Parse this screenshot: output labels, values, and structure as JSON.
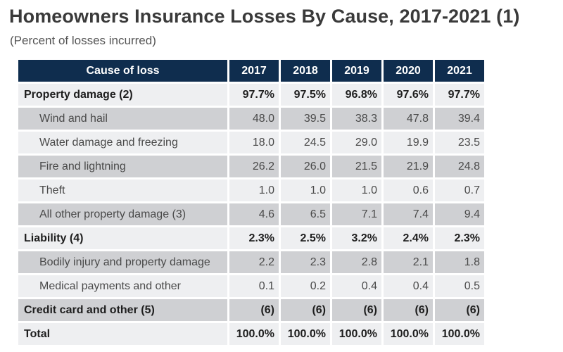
{
  "title": "Homeowners Insurance Losses By Cause, 2017-2021 (1)",
  "subtitle": "(Percent of losses incurred)",
  "table": {
    "header": {
      "cause": "Cause of loss",
      "years": [
        "2017",
        "2018",
        "2019",
        "2020",
        "2021"
      ]
    },
    "rows": [
      {
        "label": "Property damage (2)",
        "values": [
          "97.7%",
          "97.5%",
          "96.8%",
          "97.6%",
          "97.7%"
        ],
        "type": "bold"
      },
      {
        "label": "Wind and hail",
        "values": [
          "48.0",
          "39.5",
          "38.3",
          "47.8",
          "39.4"
        ],
        "type": "sub"
      },
      {
        "label": "Water damage and freezing",
        "values": [
          "18.0",
          "24.5",
          "29.0",
          "19.9",
          "23.5"
        ],
        "type": "sub"
      },
      {
        "label": "Fire and lightning",
        "values": [
          "26.2",
          "26.0",
          "21.5",
          "21.9",
          "24.8"
        ],
        "type": "sub"
      },
      {
        "label": "Theft",
        "values": [
          "1.0",
          "1.0",
          "1.0",
          "0.6",
          "0.7"
        ],
        "type": "sub"
      },
      {
        "label": "All other property damage (3)",
        "values": [
          "4.6",
          "6.5",
          "7.1",
          "7.4",
          "9.4"
        ],
        "type": "sub"
      },
      {
        "label": "Liability (4)",
        "values": [
          "2.3%",
          "2.5%",
          "3.2%",
          "2.4%",
          "2.3%"
        ],
        "type": "bold"
      },
      {
        "label": "Bodily injury and property damage",
        "values": [
          "2.2",
          "2.3",
          "2.8",
          "2.1",
          "1.8"
        ],
        "type": "sub"
      },
      {
        "label": "Medical payments and other",
        "values": [
          "0.1",
          "0.2",
          "0.4",
          "0.4",
          "0.5"
        ],
        "type": "sub"
      },
      {
        "label": "Credit card and other (5)",
        "values": [
          "(6)",
          "(6)",
          "(6)",
          "(6)",
          "(6)"
        ],
        "type": "bold"
      },
      {
        "label": "Total",
        "values": [
          "100.0%",
          "100.0%",
          "100.0%",
          "100.0%",
          "100.0%"
        ],
        "type": "bold"
      }
    ]
  },
  "colors": {
    "header_bg": "#0f2d4e",
    "row_shade": "#cfd0d3",
    "row_light": "#eeeff1"
  }
}
